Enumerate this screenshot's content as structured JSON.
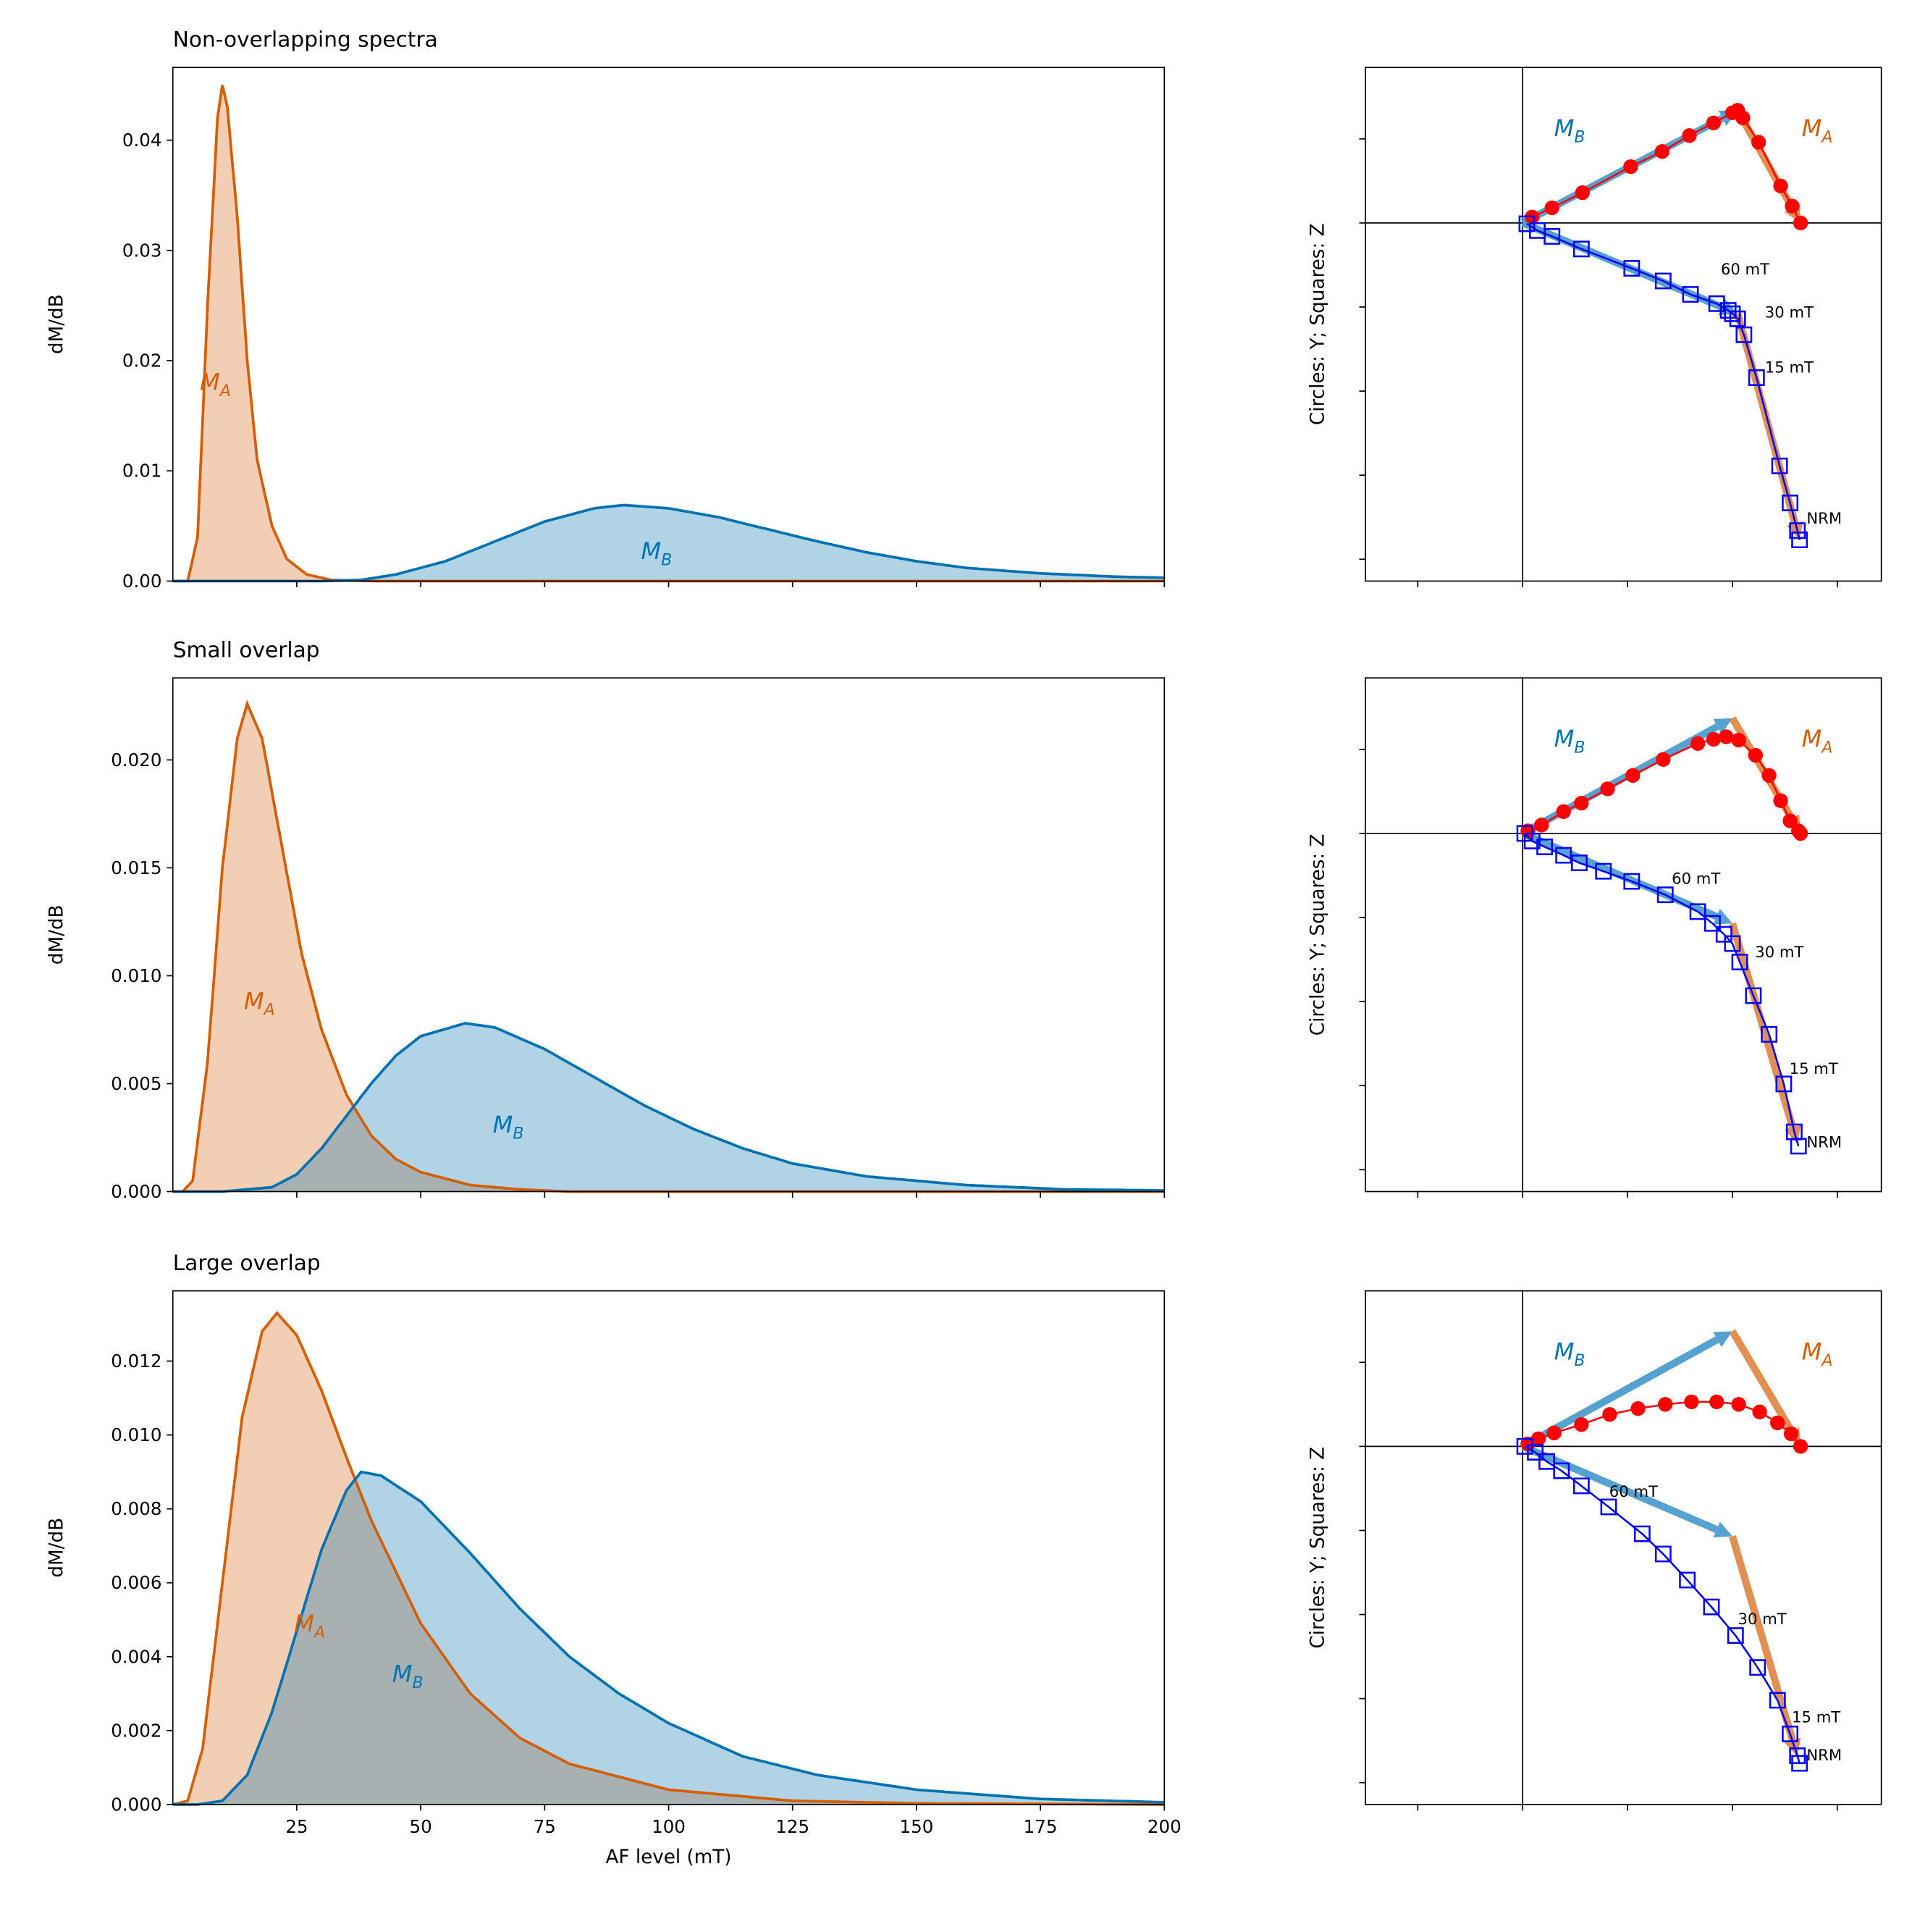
{
  "colors": {
    "MA": "#d55e00",
    "MA_fill": "#f2cfb4",
    "MB": "#0072b2",
    "MB_fill": "#b0d4e6",
    "overlap": "#a8b1b1",
    "circles": "#ff0000",
    "squares": "#0000ff",
    "arrow_MB": "#4c9dce",
    "arrow_MA": "#e08a4a"
  },
  "chart_data": [
    {
      "type": "area",
      "title": "Non-overlapping spectra",
      "xlabel": "",
      "ylabel": "dM/dB",
      "xlim": [
        0,
        200
      ],
      "ylim": [
        0,
        0.0466
      ],
      "xticks": [
        25,
        50,
        75,
        100,
        125,
        150,
        175,
        200
      ],
      "xtick_labels_shown": false,
      "yticks": [
        0,
        0.01,
        0.02,
        0.03,
        0.04
      ],
      "ytick_labels": [
        "0.00",
        "0.01",
        "0.02",
        "0.03",
        "0.04"
      ],
      "grid": false,
      "series": [
        {
          "name": "M_A",
          "label_main": "M",
          "label_sub": "A",
          "points": [
            [
              0,
              0
            ],
            [
              3,
              0
            ],
            [
              5,
              0.004
            ],
            [
              7,
              0.025
            ],
            [
              9,
              0.042
            ],
            [
              10,
              0.045
            ],
            [
              11,
              0.043
            ],
            [
              13,
              0.033
            ],
            [
              15,
              0.02
            ],
            [
              17,
              0.011
            ],
            [
              20,
              0.005
            ],
            [
              23,
              0.002
            ],
            [
              27,
              0.0006
            ],
            [
              32,
              0.0001
            ],
            [
              40,
              0
            ],
            [
              200,
              0
            ]
          ]
        },
        {
          "name": "M_B",
          "label_main": "M",
          "label_sub": "B",
          "points": [
            [
              0,
              0
            ],
            [
              30,
              0
            ],
            [
              38,
              0.0001
            ],
            [
              45,
              0.0006
            ],
            [
              55,
              0.0018
            ],
            [
              65,
              0.0036
            ],
            [
              75,
              0.0054
            ],
            [
              85,
              0.0066
            ],
            [
              91,
              0.0069
            ],
            [
              100,
              0.0066
            ],
            [
              110,
              0.0058
            ],
            [
              120,
              0.0047
            ],
            [
              130,
              0.0036
            ],
            [
              140,
              0.0026
            ],
            [
              150,
              0.0018
            ],
            [
              160,
              0.0012
            ],
            [
              175,
              0.0007
            ],
            [
              190,
              0.0004
            ],
            [
              200,
              0.0003
            ]
          ]
        }
      ]
    },
    {
      "type": "area",
      "title": "Small overlap",
      "xlabel": "",
      "ylabel": "dM/dB",
      "xlim": [
        0,
        200
      ],
      "ylim": [
        0,
        0.0238
      ],
      "xticks": [
        25,
        50,
        75,
        100,
        125,
        150,
        175,
        200
      ],
      "xtick_labels_shown": false,
      "yticks": [
        0,
        0.005,
        0.01,
        0.015,
        0.02
      ],
      "ytick_labels": [
        "0.000",
        "0.005",
        "0.010",
        "0.015",
        "0.020"
      ],
      "grid": false,
      "series": [
        {
          "name": "M_A",
          "label_main": "M",
          "label_sub": "A",
          "points": [
            [
              0,
              0
            ],
            [
              2,
              0
            ],
            [
              4,
              0.0005
            ],
            [
              7,
              0.006
            ],
            [
              10,
              0.015
            ],
            [
              13,
              0.021
            ],
            [
              15,
              0.0226
            ],
            [
              18,
              0.021
            ],
            [
              22,
              0.016
            ],
            [
              26,
              0.011
            ],
            [
              30,
              0.0075
            ],
            [
              35,
              0.0045
            ],
            [
              40,
              0.0026
            ],
            [
              45,
              0.0015
            ],
            [
              50,
              0.0009
            ],
            [
              60,
              0.0003
            ],
            [
              70,
              0.0001
            ],
            [
              80,
              0
            ],
            [
              200,
              0
            ]
          ]
        },
        {
          "name": "M_B",
          "label_main": "M",
          "label_sub": "B",
          "points": [
            [
              0,
              0
            ],
            [
              10,
              0
            ],
            [
              20,
              0.0002
            ],
            [
              25,
              0.0008
            ],
            [
              30,
              0.002
            ],
            [
              35,
              0.0035
            ],
            [
              40,
              0.005
            ],
            [
              45,
              0.0063
            ],
            [
              50,
              0.0072
            ],
            [
              59,
              0.0078
            ],
            [
              65,
              0.0076
            ],
            [
              75,
              0.0066
            ],
            [
              85,
              0.0053
            ],
            [
              95,
              0.004
            ],
            [
              105,
              0.0029
            ],
            [
              115,
              0.002
            ],
            [
              125,
              0.0013
            ],
            [
              140,
              0.0007
            ],
            [
              160,
              0.0003
            ],
            [
              180,
              0.0001
            ],
            [
              200,
              5e-05
            ]
          ]
        }
      ]
    },
    {
      "type": "area",
      "title": "Large overlap",
      "xlabel": "AF level (mT)",
      "ylabel": "dM/dB",
      "xlim": [
        0,
        200
      ],
      "ylim": [
        0,
        0.0139
      ],
      "xticks": [
        25,
        50,
        75,
        100,
        125,
        150,
        175,
        200
      ],
      "xtick_labels": [
        "25",
        "50",
        "75",
        "100",
        "125",
        "150",
        "175",
        "200"
      ],
      "yticks": [
        0,
        0.002,
        0.004,
        0.006,
        0.008,
        0.01,
        0.012
      ],
      "ytick_labels": [
        "0.000",
        "0.002",
        "0.004",
        "0.006",
        "0.008",
        "0.010",
        "0.012"
      ],
      "grid": false,
      "series": [
        {
          "name": "M_A",
          "label_main": "M",
          "label_sub": "A",
          "points": [
            [
              0,
              0
            ],
            [
              3,
              0.0001
            ],
            [
              6,
              0.0015
            ],
            [
              10,
              0.006
            ],
            [
              14,
              0.0105
            ],
            [
              18,
              0.0128
            ],
            [
              21,
              0.0133
            ],
            [
              25,
              0.0127
            ],
            [
              30,
              0.0112
            ],
            [
              35,
              0.0094
            ],
            [
              40,
              0.0077
            ],
            [
              50,
              0.0049
            ],
            [
              60,
              0.003
            ],
            [
              70,
              0.0018
            ],
            [
              80,
              0.0011
            ],
            [
              100,
              0.0004
            ],
            [
              125,
              0.0001
            ],
            [
              150,
              3e-05
            ],
            [
              200,
              0
            ]
          ]
        },
        {
          "name": "M_B",
          "label_main": "M",
          "label_sub": "B",
          "points": [
            [
              0,
              0
            ],
            [
              5,
              0
            ],
            [
              10,
              0.0001
            ],
            [
              15,
              0.0008
            ],
            [
              20,
              0.0025
            ],
            [
              25,
              0.0047
            ],
            [
              30,
              0.0069
            ],
            [
              35,
              0.0085
            ],
            [
              38,
              0.009
            ],
            [
              42,
              0.0089
            ],
            [
              50,
              0.0082
            ],
            [
              60,
              0.0068
            ],
            [
              70,
              0.0053
            ],
            [
              80,
              0.004
            ],
            [
              90,
              0.003
            ],
            [
              100,
              0.0022
            ],
            [
              115,
              0.0013
            ],
            [
              130,
              0.0008
            ],
            [
              150,
              0.0004
            ],
            [
              175,
              0.00015
            ],
            [
              200,
              6e-05
            ]
          ]
        }
      ]
    },
    {
      "type": "scatter",
      "subtype": "zijderveld",
      "ylabel": "Circles: Y; Squares: Z",
      "xlim": [
        -1.5,
        3.42
      ],
      "ylim": [
        -4.26,
        1.85
      ],
      "ticks_labeled": false,
      "arrows": {
        "MB_Y": [
          [
            0,
            0
          ],
          [
            2.05,
            1.34
          ]
        ],
        "MA_Y": [
          [
            2.05,
            1.34
          ],
          [
            2.65,
            0
          ]
        ],
        "MB_Z": [
          [
            0,
            0
          ],
          [
            2.05,
            -1.08
          ]
        ],
        "MA_Z": [
          [
            2.05,
            -1.08
          ],
          [
            2.64,
            -3.77
          ]
        ]
      },
      "component_labels": {
        "MB_main": "M",
        "MB_sub": "B",
        "MA_main": "M",
        "MA_sub": "A"
      },
      "annotations": [
        "60 mT",
        "30 mT",
        "15 mT",
        "NRM"
      ],
      "circles": [
        [
          0.09,
          0.07
        ],
        [
          0.28,
          0.18
        ],
        [
          0.57,
          0.36
        ],
        [
          1.03,
          0.67
        ],
        [
          1.33,
          0.85
        ],
        [
          1.59,
          1.04
        ],
        [
          1.82,
          1.19
        ],
        [
          2.0,
          1.31
        ],
        [
          2.05,
          1.34
        ],
        [
          2.1,
          1.25
        ],
        [
          2.25,
          0.96
        ],
        [
          2.46,
          0.44
        ],
        [
          2.57,
          0.2
        ],
        [
          2.65,
          0
        ]
      ],
      "squares": [
        [
          0.04,
          -0.01
        ],
        [
          0.14,
          -0.09
        ],
        [
          0.28,
          -0.16
        ],
        [
          0.56,
          -0.31
        ],
        [
          1.04,
          -0.54
        ],
        [
          1.34,
          -0.69
        ],
        [
          1.6,
          -0.85
        ],
        [
          1.85,
          -0.96
        ],
        [
          1.96,
          -1.04
        ],
        [
          2.0,
          -1.08
        ],
        [
          2.05,
          -1.14
        ],
        [
          2.11,
          -1.33
        ],
        [
          2.23,
          -1.84
        ],
        [
          2.45,
          -2.89
        ],
        [
          2.55,
          -3.33
        ],
        [
          2.62,
          -3.66
        ],
        [
          2.64,
          -3.77
        ]
      ]
    },
    {
      "type": "scatter",
      "subtype": "zijderveld",
      "ylabel": "Circles: Y; Squares: Z",
      "xlim": [
        -1.5,
        3.42
      ],
      "ylim": [
        -4.26,
        1.85
      ],
      "ticks_labeled": false,
      "arrows": {
        "MB_Y": [
          [
            0,
            0
          ],
          [
            2.0,
            1.37
          ]
        ],
        "MA_Y": [
          [
            2.0,
            1.37
          ],
          [
            2.65,
            0
          ]
        ],
        "MB_Z": [
          [
            0,
            0
          ],
          [
            2.0,
            -1.07
          ]
        ],
        "MA_Z": [
          [
            2.0,
            -1.07
          ],
          [
            2.62,
            -3.69
          ]
        ]
      },
      "component_labels": {
        "MB_main": "M",
        "MB_sub": "B",
        "MA_main": "M",
        "MA_sub": "A"
      },
      "annotations": [
        "60 mT",
        "30 mT",
        "15 mT",
        "NRM"
      ],
      "circles": [
        [
          0.05,
          0.03
        ],
        [
          0.18,
          0.1
        ],
        [
          0.39,
          0.26
        ],
        [
          0.56,
          0.36
        ],
        [
          0.81,
          0.53
        ],
        [
          1.05,
          0.69
        ],
        [
          1.34,
          0.88
        ],
        [
          1.67,
          1.07
        ],
        [
          1.82,
          1.12
        ],
        [
          1.94,
          1.15
        ],
        [
          2.06,
          1.11
        ],
        [
          2.22,
          0.93
        ],
        [
          2.35,
          0.69
        ],
        [
          2.46,
          0.39
        ],
        [
          2.55,
          0.15
        ],
        [
          2.63,
          0.03
        ],
        [
          2.65,
          0
        ]
      ],
      "squares": [
        [
          0.02,
          0
        ],
        [
          0.09,
          -0.09
        ],
        [
          0.21,
          -0.16
        ],
        [
          0.39,
          -0.26
        ],
        [
          0.54,
          -0.35
        ],
        [
          0.77,
          -0.45
        ],
        [
          1.04,
          -0.57
        ],
        [
          1.36,
          -0.73
        ],
        [
          1.67,
          -0.93
        ],
        [
          1.81,
          -1.07
        ],
        [
          1.92,
          -1.2
        ],
        [
          2.0,
          -1.31
        ],
        [
          2.07,
          -1.53
        ],
        [
          2.2,
          -1.93
        ],
        [
          2.35,
          -2.39
        ],
        [
          2.49,
          -2.98
        ],
        [
          2.59,
          -3.55
        ],
        [
          2.63,
          -3.72
        ]
      ]
    },
    {
      "type": "scatter",
      "subtype": "zijderveld",
      "ylabel": "Circles: Y; Squares: Z",
      "xlim": [
        -1.5,
        3.42
      ],
      "ylim": [
        -4.26,
        1.85
      ],
      "ticks_labeled": false,
      "arrows": {
        "MB_Y": [
          [
            0,
            0
          ],
          [
            2.0,
            1.37
          ]
        ],
        "MA_Y": [
          [
            2.0,
            1.37
          ],
          [
            2.65,
            0
          ]
        ],
        "MB_Z": [
          [
            0,
            0
          ],
          [
            2.0,
            -1.07
          ]
        ],
        "MA_Z": [
          [
            2.0,
            -1.07
          ],
          [
            2.62,
            -3.69
          ]
        ]
      },
      "component_labels": {
        "MB_main": "M",
        "MB_sub": "B",
        "MA_main": "M",
        "MA_sub": "A"
      },
      "annotations": [
        "60 mT",
        "30 mT",
        "15 mT",
        "NRM"
      ],
      "circles": [
        [
          0.05,
          0.03
        ],
        [
          0.15,
          0.09
        ],
        [
          0.3,
          0.16
        ],
        [
          0.56,
          0.26
        ],
        [
          0.83,
          0.38
        ],
        [
          1.1,
          0.45
        ],
        [
          1.36,
          0.5
        ],
        [
          1.61,
          0.53
        ],
        [
          1.85,
          0.53
        ],
        [
          2.06,
          0.5
        ],
        [
          2.26,
          0.41
        ],
        [
          2.43,
          0.28
        ],
        [
          2.56,
          0.15
        ],
        [
          2.65,
          0
        ]
      ],
      "squares": [
        [
          0.02,
          0
        ],
        [
          0.12,
          -0.07
        ],
        [
          0.23,
          -0.18
        ],
        [
          0.37,
          -0.29
        ],
        [
          0.56,
          -0.47
        ],
        [
          0.82,
          -0.72
        ],
        [
          1.14,
          -1.04
        ],
        [
          1.34,
          -1.28
        ],
        [
          1.57,
          -1.59
        ],
        [
          1.8,
          -1.91
        ],
        [
          2.03,
          -2.25
        ],
        [
          2.24,
          -2.63
        ],
        [
          2.43,
          -3.02
        ],
        [
          2.55,
          -3.42
        ],
        [
          2.62,
          -3.68
        ],
        [
          2.64,
          -3.77
        ]
      ]
    }
  ]
}
